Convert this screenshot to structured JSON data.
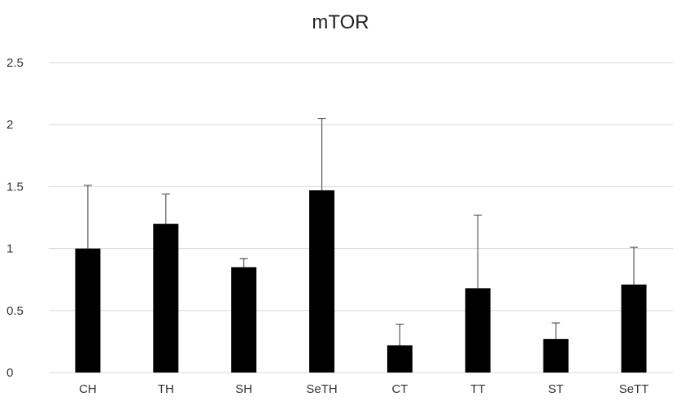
{
  "chart_data": {
    "type": "bar",
    "title": "mTOR",
    "xlabel": "",
    "ylabel": "",
    "categories": [
      "CH",
      "TH",
      "SH",
      "SeTH",
      "CT",
      "TT",
      "ST",
      "SeTT"
    ],
    "values": [
      1.0,
      1.2,
      0.85,
      1.47,
      0.22,
      0.68,
      0.27,
      0.71
    ],
    "error": [
      0.51,
      0.24,
      0.07,
      0.58,
      0.17,
      0.59,
      0.13,
      0.3
    ],
    "ylim": [
      0,
      2.5
    ],
    "yticks": [
      "0",
      "0.5",
      "1",
      "1.5",
      "2",
      "2.5"
    ],
    "grid": true,
    "legend": "none",
    "colors": {
      "bar": "#000000",
      "grid": "#d9d9d9",
      "error": "#595959"
    }
  }
}
